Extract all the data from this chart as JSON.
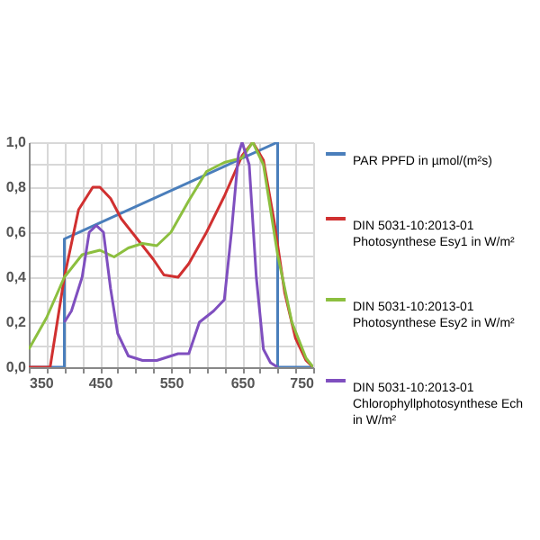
{
  "chart_data": {
    "type": "line",
    "xlim": [
      350,
      750
    ],
    "ylim": [
      0,
      1.0
    ],
    "xticks": [
      350,
      {
        "value": 375,
        "label": null
      },
      {
        "value": 400,
        "label": null
      },
      {
        "value": 425,
        "label": null
      },
      450,
      {
        "value": 475,
        "label": null
      },
      {
        "value": 500,
        "label": null
      },
      {
        "value": 525,
        "label": null
      },
      550,
      {
        "value": 575,
        "label": null
      },
      {
        "value": 600,
        "label": null
      },
      {
        "value": 625,
        "label": null
      },
      650,
      {
        "value": 675,
        "label": null
      },
      {
        "value": 700,
        "label": null
      },
      {
        "value": 725,
        "label": null
      },
      750
    ],
    "yticks": [
      {
        "value": 0,
        "label": "0,0"
      },
      {
        "value": 0.1,
        "label": null
      },
      {
        "value": 0.2,
        "label": "0,2"
      },
      {
        "value": 0.3,
        "label": null
      },
      {
        "value": 0.4,
        "label": "0,4"
      },
      {
        "value": 0.5,
        "label": null
      },
      {
        "value": 0.6,
        "label": "0,6"
      },
      {
        "value": 0.7,
        "label": null
      },
      {
        "value": 0.8,
        "label": "0,8"
      },
      {
        "value": 0.9,
        "label": null
      },
      {
        "value": 1.0,
        "label": "1,0"
      }
    ],
    "grid": true,
    "legend": "right",
    "marker": "none",
    "line_style": "solid",
    "series": [
      {
        "name": "PAR PPFD in µmol/(m²s)",
        "color": "#4a7ebb",
        "x": [
          350,
          400,
          400,
          700,
          700,
          750
        ],
        "values": [
          0,
          0,
          0.57,
          1.0,
          0,
          0
        ]
      },
      {
        "name": "DIN 5031-10:2013-01 Photosynthese Esy1 in W/m²",
        "color": "#d03030",
        "x": [
          350,
          380,
          400,
          420,
          440,
          450,
          465,
          480,
          500,
          525,
          540,
          560,
          575,
          600,
          625,
          650,
          665,
          680,
          695,
          710,
          725,
          740,
          750
        ],
        "values": [
          0,
          0,
          0.4,
          0.7,
          0.8,
          0.8,
          0.75,
          0.66,
          0.58,
          0.48,
          0.41,
          0.4,
          0.46,
          0.6,
          0.76,
          0.94,
          1.0,
          0.92,
          0.65,
          0.33,
          0.13,
          0.03,
          0
        ]
      },
      {
        "name": "DIN 5031-10:2013-01 Photosynthese Esy2 in W/m²",
        "color": "#8cbf3f",
        "x": [
          350,
          375,
          400,
          425,
          450,
          470,
          490,
          510,
          530,
          550,
          575,
          600,
          625,
          650,
          665,
          680,
          700,
          720,
          740,
          750
        ],
        "values": [
          0.08,
          0.22,
          0.4,
          0.5,
          0.52,
          0.49,
          0.53,
          0.55,
          0.54,
          0.6,
          0.74,
          0.87,
          0.91,
          0.93,
          1.0,
          0.9,
          0.5,
          0.2,
          0.04,
          0
        ]
      },
      {
        "name": "DIN 5031-10:2013-01 Chlorophyllphotosynthese Ech in W/m²",
        "color": "#7f4fbf",
        "x": [
          400,
          410,
          425,
          435,
          445,
          455,
          465,
          475,
          490,
          510,
          530,
          550,
          560,
          575,
          590,
          610,
          625,
          635,
          645,
          650,
          660,
          670,
          680,
          690,
          700
        ],
        "values": [
          0.2,
          0.25,
          0.4,
          0.6,
          0.63,
          0.6,
          0.35,
          0.15,
          0.05,
          0.03,
          0.03,
          0.05,
          0.06,
          0.06,
          0.2,
          0.25,
          0.3,
          0.6,
          0.95,
          1.0,
          0.9,
          0.4,
          0.08,
          0.02,
          0
        ]
      }
    ]
  }
}
